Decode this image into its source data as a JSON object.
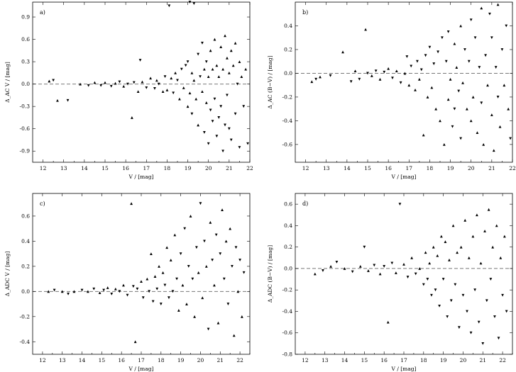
{
  "chart_data": [
    {
      "type": "scatter",
      "panel_label": "a)",
      "xlabel": "V / [mag]",
      "ylabel": "Δ_AC V / [mag]",
      "xlim": [
        11.5,
        22
      ],
      "ylim": [
        -1.05,
        1.1
      ],
      "xticks": [
        12,
        13,
        14,
        15,
        16,
        17,
        18,
        19,
        20,
        21,
        22
      ],
      "yticks": [
        -0.9,
        -0.6,
        -0.3,
        0.0,
        0.3,
        0.6,
        0.9
      ],
      "ytick_labels": [
        "-0.9",
        "-0.6",
        "-0.3",
        "0.0",
        "0.3",
        "0.6",
        "0.9"
      ],
      "grid": false,
      "reference_line_y": 0.0,
      "reference_line_style": "dashed",
      "points": [
        [
          12.3,
          0.04
        ],
        [
          12.5,
          0.05
        ],
        [
          12.7,
          -0.22
        ],
        [
          13.2,
          -0.22
        ],
        [
          13.8,
          0.0
        ],
        [
          14.2,
          -0.02
        ],
        [
          14.5,
          0.02
        ],
        [
          14.8,
          -0.02
        ],
        [
          15.0,
          0.02
        ],
        [
          15.3,
          -0.03
        ],
        [
          15.5,
          0.01
        ],
        [
          15.7,
          0.03
        ],
        [
          15.9,
          -0.03
        ],
        [
          16.1,
          0.0
        ],
        [
          16.3,
          -0.45
        ],
        [
          16.4,
          0.02
        ],
        [
          16.6,
          -0.1
        ],
        [
          16.7,
          0.32
        ],
        [
          16.8,
          0.03
        ],
        [
          17.0,
          -0.05
        ],
        [
          17.2,
          0.08
        ],
        [
          17.4,
          -0.06
        ],
        [
          17.5,
          0.05
        ],
        [
          17.6,
          0.0
        ],
        [
          17.8,
          -0.1
        ],
        [
          17.9,
          0.1
        ],
        [
          18.0,
          -0.08
        ],
        [
          18.1,
          1.05
        ],
        [
          18.2,
          0.08
        ],
        [
          18.3,
          -0.12
        ],
        [
          18.4,
          0.15
        ],
        [
          18.5,
          0.05
        ],
        [
          18.6,
          -0.2
        ],
        [
          18.7,
          0.2
        ],
        [
          18.8,
          -0.05
        ],
        [
          18.9,
          0.25
        ],
        [
          19.0,
          -0.3
        ],
        [
          19.0,
          0.3
        ],
        [
          19.1,
          -0.12
        ],
        [
          19.1,
          1.1
        ],
        [
          19.2,
          0.15
        ],
        [
          19.2,
          -0.4
        ],
        [
          19.3,
          0.05
        ],
        [
          19.3,
          1.08
        ],
        [
          19.4,
          -0.2
        ],
        [
          19.5,
          0.4
        ],
        [
          19.5,
          -0.55
        ],
        [
          19.6,
          0.1
        ],
        [
          19.7,
          -0.1
        ],
        [
          19.7,
          0.55
        ],
        [
          19.8,
          0.2
        ],
        [
          19.8,
          -0.65
        ],
        [
          19.9,
          -0.25
        ],
        [
          19.9,
          0.3
        ],
        [
          20.0,
          0.1
        ],
        [
          20.0,
          -0.8
        ],
        [
          20.1,
          0.45
        ],
        [
          20.1,
          -0.35
        ],
        [
          20.2,
          0.2
        ],
        [
          20.2,
          -0.5
        ],
        [
          20.3,
          0.6
        ],
        [
          20.3,
          -0.2
        ],
        [
          20.4,
          0.25
        ],
        [
          20.4,
          -0.7
        ],
        [
          20.5,
          0.1
        ],
        [
          20.5,
          -0.45
        ],
        [
          20.6,
          0.5
        ],
        [
          20.6,
          -0.3
        ],
        [
          20.7,
          0.2
        ],
        [
          20.7,
          -0.9
        ],
        [
          20.8,
          0.65
        ],
        [
          20.8,
          -0.55
        ],
        [
          20.9,
          0.35
        ],
        [
          20.9,
          -0.15
        ],
        [
          21.0,
          0.15
        ],
        [
          21.0,
          -0.6
        ],
        [
          21.1,
          0.45
        ],
        [
          21.1,
          -0.75
        ],
        [
          21.2,
          0.25
        ],
        [
          21.3,
          -0.4
        ],
        [
          21.3,
          0.55
        ],
        [
          21.4,
          0.0
        ],
        [
          21.5,
          0.3
        ],
        [
          21.5,
          -0.85
        ],
        [
          21.6,
          0.1
        ],
        [
          21.7,
          -0.3
        ],
        [
          21.8,
          0.2
        ],
        [
          21.9,
          -0.8
        ]
      ]
    },
    {
      "type": "scatter",
      "panel_label": "b)",
      "xlabel": "V / [mag]",
      "ylabel": "Δ_AC (B−V) / [mag]",
      "xlim": [
        11.5,
        22
      ],
      "ylim": [
        -0.75,
        0.6
      ],
      "xticks": [
        12,
        13,
        14,
        15,
        16,
        17,
        18,
        19,
        20,
        21,
        22
      ],
      "yticks": [
        -0.6,
        -0.4,
        -0.2,
        0.0,
        0.2,
        0.4
      ],
      "ytick_labels": [
        "-0.6",
        "-0.4",
        "-0.2",
        "0.0",
        "0.2",
        "0.4"
      ],
      "grid": false,
      "reference_line_y": 0.0,
      "reference_line_style": "dashed",
      "points": [
        [
          12.3,
          -0.07
        ],
        [
          12.5,
          -0.05
        ],
        [
          12.7,
          -0.03
        ],
        [
          13.2,
          -0.02
        ],
        [
          13.8,
          0.18
        ],
        [
          14.2,
          -0.07
        ],
        [
          14.4,
          0.02
        ],
        [
          14.6,
          -0.05
        ],
        [
          14.9,
          0.37
        ],
        [
          15.0,
          0.0
        ],
        [
          15.2,
          -0.02
        ],
        [
          15.4,
          0.02
        ],
        [
          15.6,
          -0.05
        ],
        [
          15.8,
          0.01
        ],
        [
          16.0,
          0.04
        ],
        [
          16.2,
          -0.04
        ],
        [
          16.4,
          0.02
        ],
        [
          16.6,
          -0.08
        ],
        [
          16.8,
          0.0
        ],
        [
          16.9,
          0.14
        ],
        [
          17.0,
          -0.1
        ],
        [
          17.1,
          0.06
        ],
        [
          17.3,
          -0.14
        ],
        [
          17.4,
          0.1
        ],
        [
          17.5,
          -0.05
        ],
        [
          17.6,
          0.03
        ],
        [
          17.7,
          -0.52
        ],
        [
          17.8,
          0.15
        ],
        [
          17.9,
          -0.2
        ],
        [
          18.0,
          0.22
        ],
        [
          18.1,
          -0.12
        ],
        [
          18.2,
          0.08
        ],
        [
          18.3,
          -0.3
        ],
        [
          18.4,
          0.18
        ],
        [
          18.5,
          -0.4
        ],
        [
          18.6,
          0.3
        ],
        [
          18.7,
          -0.6
        ],
        [
          18.8,
          0.1
        ],
        [
          18.9,
          -0.22
        ],
        [
          18.9,
          0.35
        ],
        [
          19.0,
          -0.05
        ],
        [
          19.1,
          -0.45
        ],
        [
          19.2,
          0.25
        ],
        [
          19.2,
          -0.3
        ],
        [
          19.3,
          0.05
        ],
        [
          19.4,
          -0.15
        ],
        [
          19.5,
          0.4
        ],
        [
          19.5,
          -0.55
        ],
        [
          19.6,
          -0.08
        ],
        [
          19.7,
          0.2
        ],
        [
          19.8,
          -0.3
        ],
        [
          19.9,
          0.1
        ],
        [
          20.0,
          -0.4
        ],
        [
          20.0,
          0.45
        ],
        [
          20.1,
          -0.2
        ],
        [
          20.2,
          0.3
        ],
        [
          20.3,
          -0.5
        ],
        [
          20.4,
          0.05
        ],
        [
          20.5,
          0.55
        ],
        [
          20.5,
          -0.25
        ],
        [
          20.6,
          -0.6
        ],
        [
          20.7,
          0.15
        ],
        [
          20.8,
          -0.1
        ],
        [
          20.9,
          0.5
        ],
        [
          21.0,
          -0.35
        ],
        [
          21.0,
          0.3
        ],
        [
          21.1,
          -0.65
        ],
        [
          21.2,
          0.05
        ],
        [
          21.3,
          0.58
        ],
        [
          21.3,
          -0.2
        ],
        [
          21.4,
          -0.45
        ],
        [
          21.5,
          0.2
        ],
        [
          21.6,
          -0.1
        ],
        [
          21.7,
          0.4
        ],
        [
          21.8,
          -0.3
        ],
        [
          21.9,
          -0.55
        ]
      ]
    },
    {
      "type": "scatter",
      "panel_label": "c)",
      "xlabel": "V / [mag]",
      "ylabel": "Δ_ADC V / [mag]",
      "xlim": [
        11.5,
        22.5
      ],
      "ylim": [
        -0.5,
        0.78
      ],
      "xticks": [
        12,
        13,
        14,
        15,
        16,
        17,
        18,
        19,
        20,
        21,
        22
      ],
      "yticks": [
        -0.4,
        -0.2,
        0.0,
        0.2,
        0.4,
        0.6
      ],
      "ytick_labels": [
        "-0.4",
        "-0.2",
        "0.0",
        "0.2",
        "0.4",
        "0.6"
      ],
      "grid": false,
      "reference_line_y": 0.0,
      "reference_line_style": "dashed",
      "points": [
        [
          12.3,
          0.0
        ],
        [
          12.6,
          0.01
        ],
        [
          13.0,
          0.0
        ],
        [
          13.3,
          -0.02
        ],
        [
          13.6,
          0.0
        ],
        [
          14.0,
          0.01
        ],
        [
          14.3,
          0.0
        ],
        [
          14.6,
          0.02
        ],
        [
          14.9,
          -0.01
        ],
        [
          15.1,
          0.01
        ],
        [
          15.3,
          0.03
        ],
        [
          15.5,
          -0.02
        ],
        [
          15.7,
          0.02
        ],
        [
          15.9,
          0.0
        ],
        [
          16.1,
          0.05
        ],
        [
          16.3,
          -0.03
        ],
        [
          16.5,
          0.7
        ],
        [
          16.6,
          0.04
        ],
        [
          16.7,
          -0.4
        ],
        [
          16.8,
          0.02
        ],
        [
          17.0,
          0.08
        ],
        [
          17.1,
          -0.05
        ],
        [
          17.3,
          0.1
        ],
        [
          17.4,
          0.0
        ],
        [
          17.5,
          0.3
        ],
        [
          17.6,
          -0.08
        ],
        [
          17.7,
          0.12
        ],
        [
          17.8,
          0.02
        ],
        [
          17.9,
          0.2
        ],
        [
          18.0,
          -0.1
        ],
        [
          18.1,
          0.15
        ],
        [
          18.2,
          0.05
        ],
        [
          18.3,
          0.35
        ],
        [
          18.4,
          -0.05
        ],
        [
          18.5,
          0.25
        ],
        [
          18.6,
          0.0
        ],
        [
          18.7,
          0.45
        ],
        [
          18.8,
          0.1
        ],
        [
          18.9,
          -0.15
        ],
        [
          19.0,
          0.3
        ],
        [
          19.1,
          0.05
        ],
        [
          19.2,
          0.5
        ],
        [
          19.3,
          -0.1
        ],
        [
          19.4,
          0.2
        ],
        [
          19.5,
          0.6
        ],
        [
          19.6,
          0.1
        ],
        [
          19.7,
          -0.2
        ],
        [
          19.8,
          0.35
        ],
        [
          19.9,
          0.15
        ],
        [
          20.0,
          0.7
        ],
        [
          20.1,
          -0.05
        ],
        [
          20.2,
          0.4
        ],
        [
          20.3,
          0.2
        ],
        [
          20.4,
          -0.3
        ],
        [
          20.5,
          0.55
        ],
        [
          20.6,
          0.25
        ],
        [
          20.7,
          0.05
        ],
        [
          20.8,
          0.45
        ],
        [
          20.9,
          -0.25
        ],
        [
          21.0,
          0.3
        ],
        [
          21.1,
          0.65
        ],
        [
          21.2,
          0.1
        ],
        [
          21.3,
          0.4
        ],
        [
          21.4,
          -0.1
        ],
        [
          21.5,
          0.5
        ],
        [
          21.6,
          0.2
        ],
        [
          21.7,
          -0.35
        ],
        [
          21.8,
          0.35
        ],
        [
          21.9,
          0.0
        ],
        [
          22.0,
          0.25
        ],
        [
          22.1,
          -0.2
        ],
        [
          22.2,
          0.15
        ]
      ]
    },
    {
      "type": "scatter",
      "panel_label": "d)",
      "xlabel": "V / [mag]",
      "ylabel": "Δ_ADC (B−V) / [mag]",
      "xlim": [
        11.5,
        22.5
      ],
      "ylim": [
        -0.8,
        0.7
      ],
      "xticks": [
        12,
        13,
        14,
        15,
        16,
        17,
        18,
        19,
        20,
        21,
        22
      ],
      "yticks": [
        -0.8,
        -0.6,
        -0.4,
        -0.2,
        0.0,
        0.2,
        0.4,
        0.6
      ],
      "ytick_labels": [
        "-0.8",
        "-0.6",
        "-0.4",
        "-0.2",
        "0.0",
        "0.2",
        "0.4",
        "0.6"
      ],
      "grid": false,
      "reference_line_y": 0.0,
      "reference_line_style": "dashed",
      "points": [
        [
          12.5,
          -0.05
        ],
        [
          12.9,
          -0.02
        ],
        [
          13.3,
          0.02
        ],
        [
          13.6,
          0.06
        ],
        [
          14.0,
          0.0
        ],
        [
          14.4,
          -0.03
        ],
        [
          14.8,
          0.02
        ],
        [
          15.0,
          0.2
        ],
        [
          15.2,
          -0.02
        ],
        [
          15.5,
          0.03
        ],
        [
          15.8,
          -0.05
        ],
        [
          16.0,
          0.02
        ],
        [
          16.2,
          -0.5
        ],
        [
          16.4,
          0.05
        ],
        [
          16.6,
          -0.04
        ],
        [
          16.8,
          0.6
        ],
        [
          17.0,
          0.04
        ],
        [
          17.2,
          -0.08
        ],
        [
          17.4,
          0.1
        ],
        [
          17.6,
          -0.05
        ],
        [
          17.8,
          0.0
        ],
        [
          18.0,
          -0.15
        ],
        [
          18.1,
          0.15
        ],
        [
          18.2,
          -0.1
        ],
        [
          18.3,
          0.05
        ],
        [
          18.4,
          -0.25
        ],
        [
          18.5,
          0.2
        ],
        [
          18.6,
          -0.2
        ],
        [
          18.7,
          0.12
        ],
        [
          18.8,
          -0.35
        ],
        [
          18.9,
          0.3
        ],
        [
          19.0,
          -0.1
        ],
        [
          19.1,
          0.25
        ],
        [
          19.2,
          -0.45
        ],
        [
          19.3,
          0.08
        ],
        [
          19.4,
          -0.3
        ],
        [
          19.5,
          0.4
        ],
        [
          19.6,
          -0.15
        ],
        [
          19.7,
          0.15
        ],
        [
          19.8,
          -0.55
        ],
        [
          19.9,
          0.2
        ],
        [
          20.0,
          -0.25
        ],
        [
          20.1,
          0.45
        ],
        [
          20.2,
          -0.4
        ],
        [
          20.3,
          0.1
        ],
        [
          20.4,
          -0.6
        ],
        [
          20.5,
          0.3
        ],
        [
          20.6,
          -0.2
        ],
        [
          20.7,
          0.5
        ],
        [
          20.8,
          -0.5
        ],
        [
          20.9,
          0.05
        ],
        [
          21.0,
          -0.7
        ],
        [
          21.1,
          0.35
        ],
        [
          21.2,
          -0.3
        ],
        [
          21.3,
          0.55
        ],
        [
          21.4,
          -0.1
        ],
        [
          21.5,
          0.2
        ],
        [
          21.6,
          -0.45
        ],
        [
          21.7,
          0.4
        ],
        [
          21.8,
          -0.65
        ],
        [
          21.9,
          0.1
        ],
        [
          22.0,
          -0.25
        ],
        [
          22.1,
          0.3
        ],
        [
          22.2,
          -0.4
        ]
      ]
    }
  ]
}
